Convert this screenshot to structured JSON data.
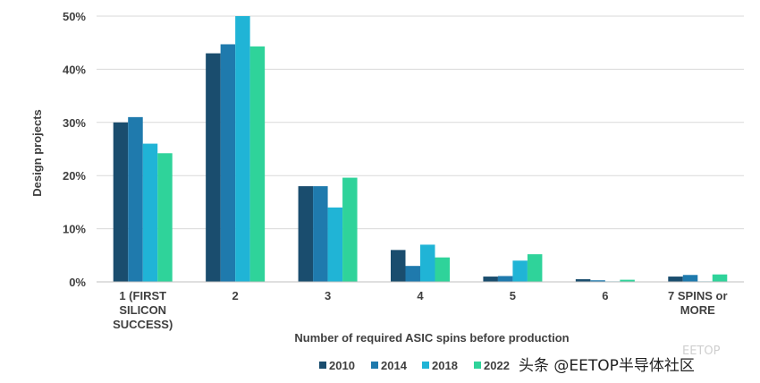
{
  "chart_data": {
    "type": "bar",
    "categories": [
      [
        "1 (FIRST",
        "SILICON",
        "SUCCESS)"
      ],
      [
        "2"
      ],
      [
        "3"
      ],
      [
        "4"
      ],
      [
        "5"
      ],
      [
        "6"
      ],
      [
        "7 SPINS or",
        "MORE"
      ]
    ],
    "series": [
      {
        "name": "2010",
        "color": "#1a4d6e",
        "values": [
          30,
          43,
          18,
          6,
          1,
          0.5,
          1
        ]
      },
      {
        "name": "2014",
        "color": "#1f7aad",
        "values": [
          31,
          44.7,
          18,
          3,
          1.1,
          0.3,
          1.3
        ]
      },
      {
        "name": "2018",
        "color": "#20b4d6",
        "values": [
          26,
          50,
          14,
          7,
          4,
          0.1,
          0.1
        ]
      },
      {
        "name": "2022",
        "color": "#2fd39a",
        "values": [
          24.2,
          44.3,
          19.6,
          4.6,
          5.2,
          0.4,
          1.4
        ]
      }
    ],
    "ylim": [
      0,
      50
    ],
    "yticks": [
      "0%",
      "10%",
      "20%",
      "30%",
      "40%",
      "50%"
    ],
    "ylabel": "Design projects",
    "xlabel": "Number of required ASIC spins before production",
    "grid": true,
    "legend_position": "bottom"
  },
  "watermark": {
    "text": "头条 @EETOP半导体社区",
    "faint_text": "EETOP"
  }
}
